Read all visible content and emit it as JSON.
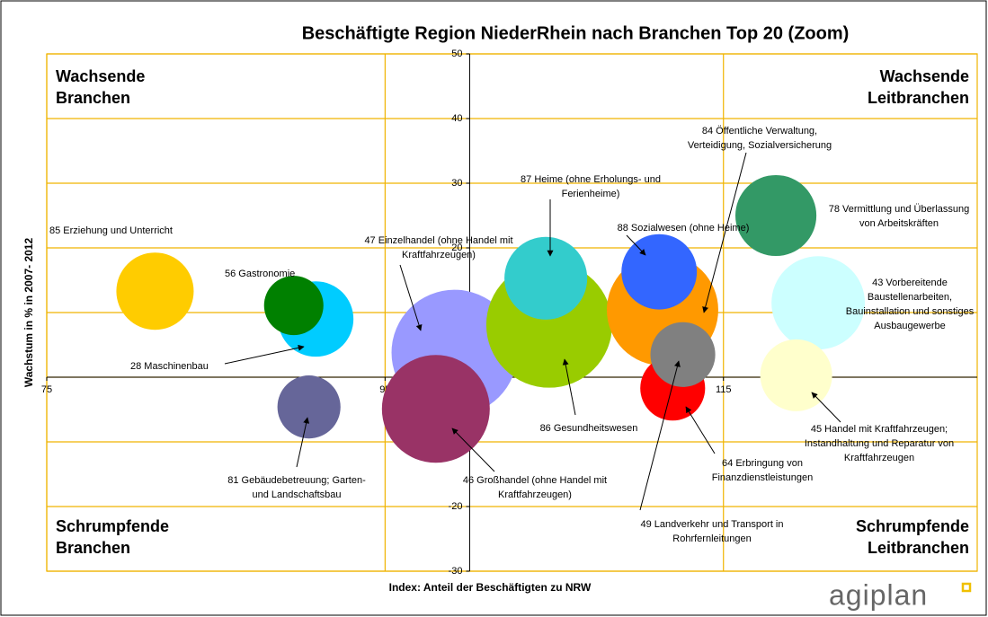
{
  "chart_data": {
    "type": "bubble",
    "title": "Beschäftigte Region NiederRhein nach Branchen Top 20 (Zoom)",
    "x_label": "Index: Anteil der Beschäftigten zu NRW",
    "y_label": "Wachstum in % in 2007- 2012",
    "xlim": [
      75,
      130
    ],
    "xticks": [
      75,
      95,
      115
    ],
    "ylim": [
      -30,
      50
    ],
    "yticks": [
      50,
      40,
      30,
      20,
      10,
      0,
      -10,
      -20,
      -30
    ],
    "y_axis_crosses": 100,
    "grid": true,
    "grid_color": "#f0b400",
    "quadrants": [
      [
        "Wachsende",
        "Branchen"
      ],
      [
        "Wachsende",
        "Leitbranchen"
      ],
      [
        "Schrumpfende",
        "Branchen"
      ],
      [
        "Schrumpfende",
        "Leitbranchen"
      ]
    ],
    "logo": "agiplan",
    "points": [
      {
        "label": [
          "85 Erziehung und Unterricht"
        ],
        "x": 81.4,
        "y": 13.3,
        "size": 18.5,
        "color": "#ffcc00"
      },
      {
        "label": [
          "28 Maschinenbau"
        ],
        "x": 90.9,
        "y": 9.0,
        "size": 17.6,
        "color": "#00ccff"
      },
      {
        "label": [
          "56 Gastronomie"
        ],
        "x": 89.6,
        "y": 11.1,
        "size": 10.9,
        "color": "#008000"
      },
      {
        "label": [
          "81 Gebäudebetreuung; Garten-",
          "und Landschaftsbau"
        ],
        "x": 90.5,
        "y": -4.6,
        "size": 12.3,
        "color": "#666699"
      },
      {
        "label": [
          "47 Einzelhandel (ohne Handel mit",
          "Kraftfahrzeugen)"
        ],
        "x": 99.1,
        "y": 3.8,
        "size": 49,
        "color": "#9999ff"
      },
      {
        "label": [
          "46 Großhandel (ohne Handel mit",
          "Kraftfahrzeugen)"
        ],
        "x": 98.0,
        "y": -4.9,
        "size": 36,
        "color": "#993366"
      },
      {
        "label": [
          "86 Gesundheitswesen"
        ],
        "x": 104.7,
        "y": 8.1,
        "size": 49,
        "color": "#99cc00"
      },
      {
        "label": [
          "87 Heime (ohne Erholungs- und",
          "Ferienheime)"
        ],
        "x": 104.5,
        "y": 15.3,
        "size": 21.2,
        "color": "#33cccc"
      },
      {
        "label": [
          "84 Öffentliche Verwaltung,",
          "Verteidigung, Sozialversicherung"
        ],
        "x": 111.4,
        "y": 10.4,
        "size": 38.4,
        "color": "#ff9900"
      },
      {
        "label": [
          "88 Sozialwesen (ohne Heime)"
        ],
        "x": 111.2,
        "y": 16.3,
        "size": 17.6,
        "color": "#3366ff"
      },
      {
        "label": [
          "64 Erbringung von",
          "Finanzdienstleistungen"
        ],
        "x": 112.0,
        "y": -1.7,
        "size": 13,
        "color": "#ff0000"
      },
      {
        "label": [
          "49 Landverkehr und Transport in",
          "Rohrfernleitungen"
        ],
        "x": 112.6,
        "y": 3.5,
        "size": 13,
        "color": "#808080"
      },
      {
        "label": [
          "78 Vermittlung und Überlassung",
          "von Arbeitskräften"
        ],
        "x": 118.1,
        "y": 25.0,
        "size": 20.3,
        "color": "#339966"
      },
      {
        "label": [
          "43 Vorbereitende",
          "Baustellenarbeiten,",
          "Bauinstallation und sonstiges",
          "Ausbaugewerbe"
        ],
        "x": 120.6,
        "y": 11.5,
        "size": 27,
        "color": "#ccffff"
      },
      {
        "label": [
          "45 Handel mit Kraftfahrzeugen;",
          "Instandhaltung und Reparatur von",
          "Kraftfahrzeugen"
        ],
        "x": 119.3,
        "y": 0.3,
        "size": 16,
        "color": "#ffffcc"
      }
    ]
  }
}
